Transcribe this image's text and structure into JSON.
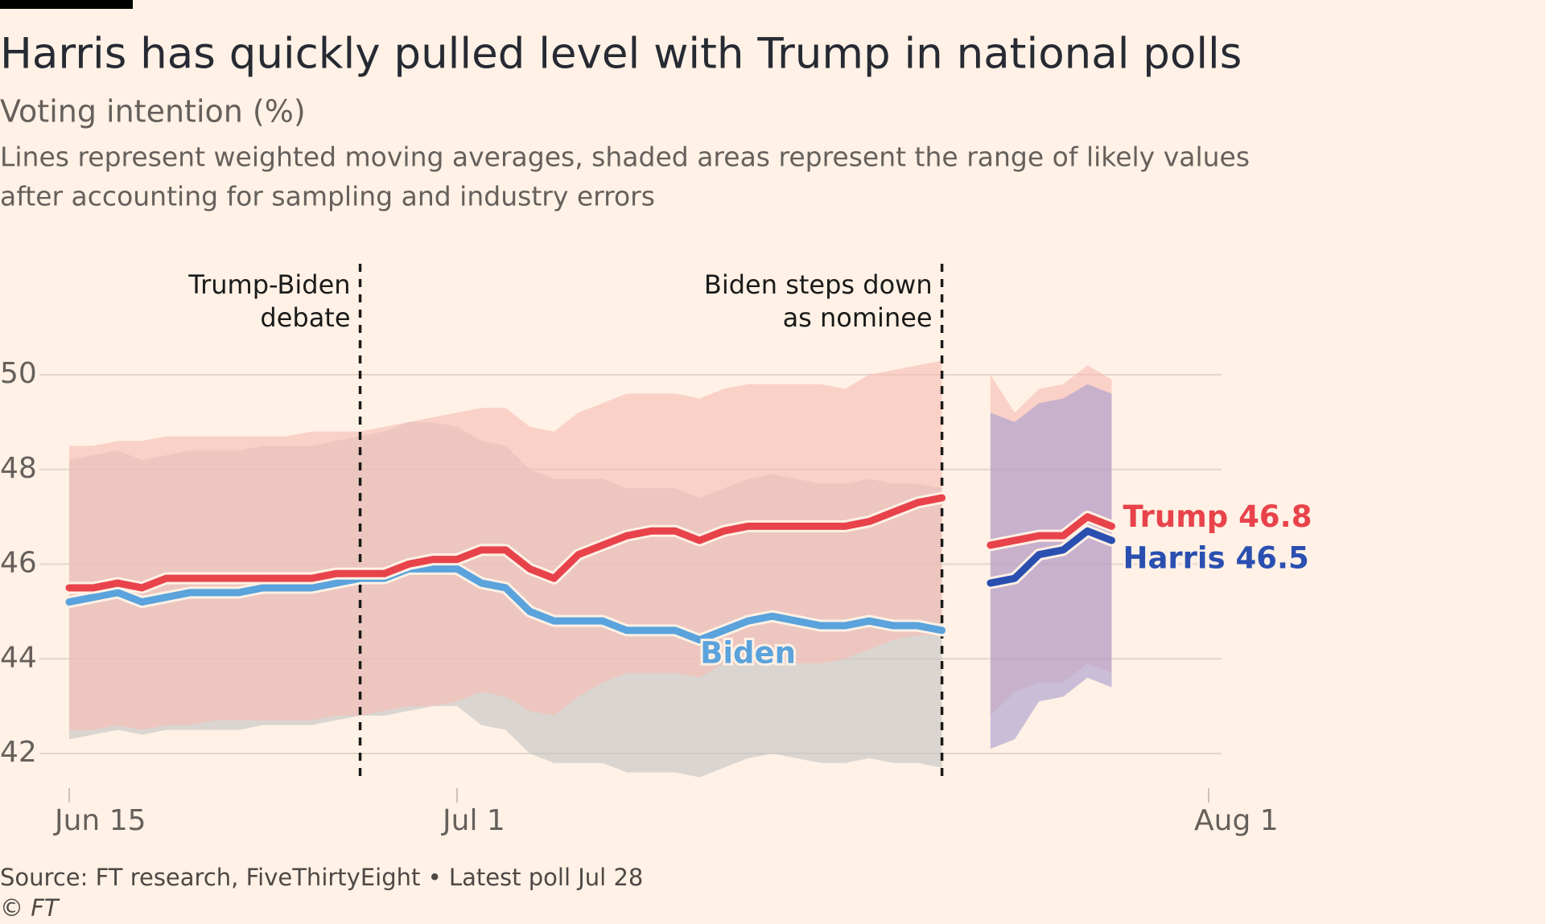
{
  "chart_data": {
    "type": "line",
    "title": "Harris has quickly pulled level with Trump in national polls",
    "subtitle": "Voting intention (%)",
    "description": [
      "Lines represent weighted moving averages, shaded areas represent the range of likely values",
      "after accounting for sampling and industry errors"
    ],
    "source": "Source: FT research, FiveThirtyEight • Latest poll Jul 28",
    "copyright": "© FT",
    "x": [
      "Jun 15",
      "Jun 16",
      "Jun 17",
      "Jun 18",
      "Jun 19",
      "Jun 20",
      "Jun 21",
      "Jun 22",
      "Jun 23",
      "Jun 24",
      "Jun 25",
      "Jun 26",
      "Jun 27",
      "Jun 28",
      "Jun 29",
      "Jun 30",
      "Jul 1",
      "Jul 2",
      "Jul 3",
      "Jul 4",
      "Jul 5",
      "Jul 6",
      "Jul 7",
      "Jul 8",
      "Jul 9",
      "Jul 10",
      "Jul 11",
      "Jul 12",
      "Jul 13",
      "Jul 14",
      "Jul 15",
      "Jul 16",
      "Jul 17",
      "Jul 18",
      "Jul 19",
      "Jul 20",
      "Jul 21",
      "Jul 22",
      "Jul 23",
      "Jul 24",
      "Jul 25",
      "Jul 26",
      "Jul 27",
      "Jul 28"
    ],
    "xlim": [
      "Jun 15",
      "Aug 1"
    ],
    "xticks": [
      "Jun 15",
      "Jul 1",
      "Aug 1"
    ],
    "ylim": [
      42,
      50
    ],
    "yticks": [
      42,
      44,
      46,
      48,
      50
    ],
    "grid": true,
    "annotations": [
      {
        "x": "Jun 27",
        "lines": [
          "Trump-Biden",
          "debate"
        ]
      },
      {
        "x": "Jul 21",
        "lines": [
          "Biden steps down",
          "as nominee"
        ]
      }
    ],
    "series": [
      {
        "name": "Biden",
        "label": "Biden",
        "color": "#5aa3dc",
        "band_color": "#c4c4c4",
        "values": [
          45.2,
          45.3,
          45.4,
          45.2,
          45.3,
          45.4,
          45.4,
          45.4,
          45.5,
          45.5,
          45.5,
          45.6,
          45.7,
          45.7,
          45.9,
          45.9,
          45.9,
          45.6,
          45.5,
          45.0,
          44.8,
          44.8,
          44.8,
          44.6,
          44.6,
          44.6,
          44.4,
          44.6,
          44.8,
          44.9,
          44.8,
          44.7,
          44.7,
          44.8,
          44.7,
          44.7,
          44.6,
          null,
          null,
          null,
          null,
          null,
          null,
          null
        ],
        "low": [
          42.3,
          42.4,
          42.5,
          42.4,
          42.5,
          42.5,
          42.5,
          42.5,
          42.6,
          42.6,
          42.6,
          42.7,
          42.8,
          42.8,
          42.9,
          43.0,
          43.0,
          42.6,
          42.5,
          42.0,
          41.8,
          41.8,
          41.8,
          41.6,
          41.6,
          41.6,
          41.5,
          41.7,
          41.9,
          42.0,
          41.9,
          41.8,
          41.8,
          41.9,
          41.8,
          41.8,
          41.7,
          null,
          null,
          null,
          null,
          null,
          null,
          null
        ],
        "high": [
          48.2,
          48.3,
          48.4,
          48.2,
          48.3,
          48.4,
          48.4,
          48.4,
          48.5,
          48.5,
          48.5,
          48.6,
          48.7,
          48.8,
          49.0,
          49.0,
          48.9,
          48.6,
          48.5,
          48.0,
          47.8,
          47.8,
          47.8,
          47.6,
          47.6,
          47.6,
          47.4,
          47.6,
          47.8,
          47.9,
          47.8,
          47.7,
          47.7,
          47.8,
          47.7,
          47.7,
          47.6,
          null,
          null,
          null,
          null,
          null,
          null,
          null
        ]
      },
      {
        "name": "Trump",
        "label": "Trump 46.8",
        "color": "#e8434b",
        "band_color": "#f7bdb5",
        "values": [
          45.5,
          45.5,
          45.6,
          45.5,
          45.7,
          45.7,
          45.7,
          45.7,
          45.7,
          45.7,
          45.7,
          45.8,
          45.8,
          45.8,
          46.0,
          46.1,
          46.1,
          46.3,
          46.3,
          45.9,
          45.7,
          46.2,
          46.4,
          46.6,
          46.7,
          46.7,
          46.5,
          46.7,
          46.8,
          46.8,
          46.8,
          46.8,
          46.8,
          46.9,
          47.1,
          47.3,
          47.4,
          null,
          46.4,
          46.5,
          46.6,
          46.6,
          47.0,
          46.8
        ],
        "low": [
          42.5,
          42.5,
          42.6,
          42.5,
          42.6,
          42.6,
          42.7,
          42.7,
          42.7,
          42.7,
          42.7,
          42.8,
          42.8,
          42.9,
          43.0,
          43.0,
          43.1,
          43.3,
          43.2,
          42.9,
          42.8,
          43.2,
          43.5,
          43.7,
          43.7,
          43.7,
          43.6,
          43.9,
          43.9,
          43.9,
          43.9,
          43.9,
          44.0,
          44.2,
          44.4,
          44.5,
          44.5,
          null,
          42.8,
          43.3,
          43.5,
          43.5,
          43.9,
          43.7
        ],
        "high": [
          48.5,
          48.5,
          48.6,
          48.6,
          48.7,
          48.7,
          48.7,
          48.7,
          48.7,
          48.7,
          48.8,
          48.8,
          48.8,
          48.9,
          49.0,
          49.1,
          49.2,
          49.3,
          49.3,
          48.9,
          48.8,
          49.2,
          49.4,
          49.6,
          49.6,
          49.6,
          49.5,
          49.7,
          49.8,
          49.8,
          49.8,
          49.8,
          49.7,
          50.0,
          50.1,
          50.2,
          50.3,
          null,
          50.0,
          49.2,
          49.7,
          49.8,
          50.2,
          49.9
        ]
      },
      {
        "name": "Harris",
        "label": "Harris 46.5",
        "color": "#2a4fb0",
        "band_color": "#a99cd0",
        "values": [
          null,
          null,
          null,
          null,
          null,
          null,
          null,
          null,
          null,
          null,
          null,
          null,
          null,
          null,
          null,
          null,
          null,
          null,
          null,
          null,
          null,
          null,
          null,
          null,
          null,
          null,
          null,
          null,
          null,
          null,
          null,
          null,
          null,
          null,
          null,
          null,
          null,
          null,
          45.6,
          45.7,
          46.2,
          46.3,
          46.7,
          46.5
        ],
        "low": [
          null,
          null,
          null,
          null,
          null,
          null,
          null,
          null,
          null,
          null,
          null,
          null,
          null,
          null,
          null,
          null,
          null,
          null,
          null,
          null,
          null,
          null,
          null,
          null,
          null,
          null,
          null,
          null,
          null,
          null,
          null,
          null,
          null,
          null,
          null,
          null,
          null,
          null,
          42.1,
          42.3,
          43.1,
          43.2,
          43.6,
          43.4
        ],
        "high": [
          null,
          null,
          null,
          null,
          null,
          null,
          null,
          null,
          null,
          null,
          null,
          null,
          null,
          null,
          null,
          null,
          null,
          null,
          null,
          null,
          null,
          null,
          null,
          null,
          null,
          null,
          null,
          null,
          null,
          null,
          null,
          null,
          null,
          null,
          null,
          null,
          null,
          null,
          49.2,
          49.0,
          49.4,
          49.5,
          49.8,
          49.6
        ]
      }
    ]
  }
}
